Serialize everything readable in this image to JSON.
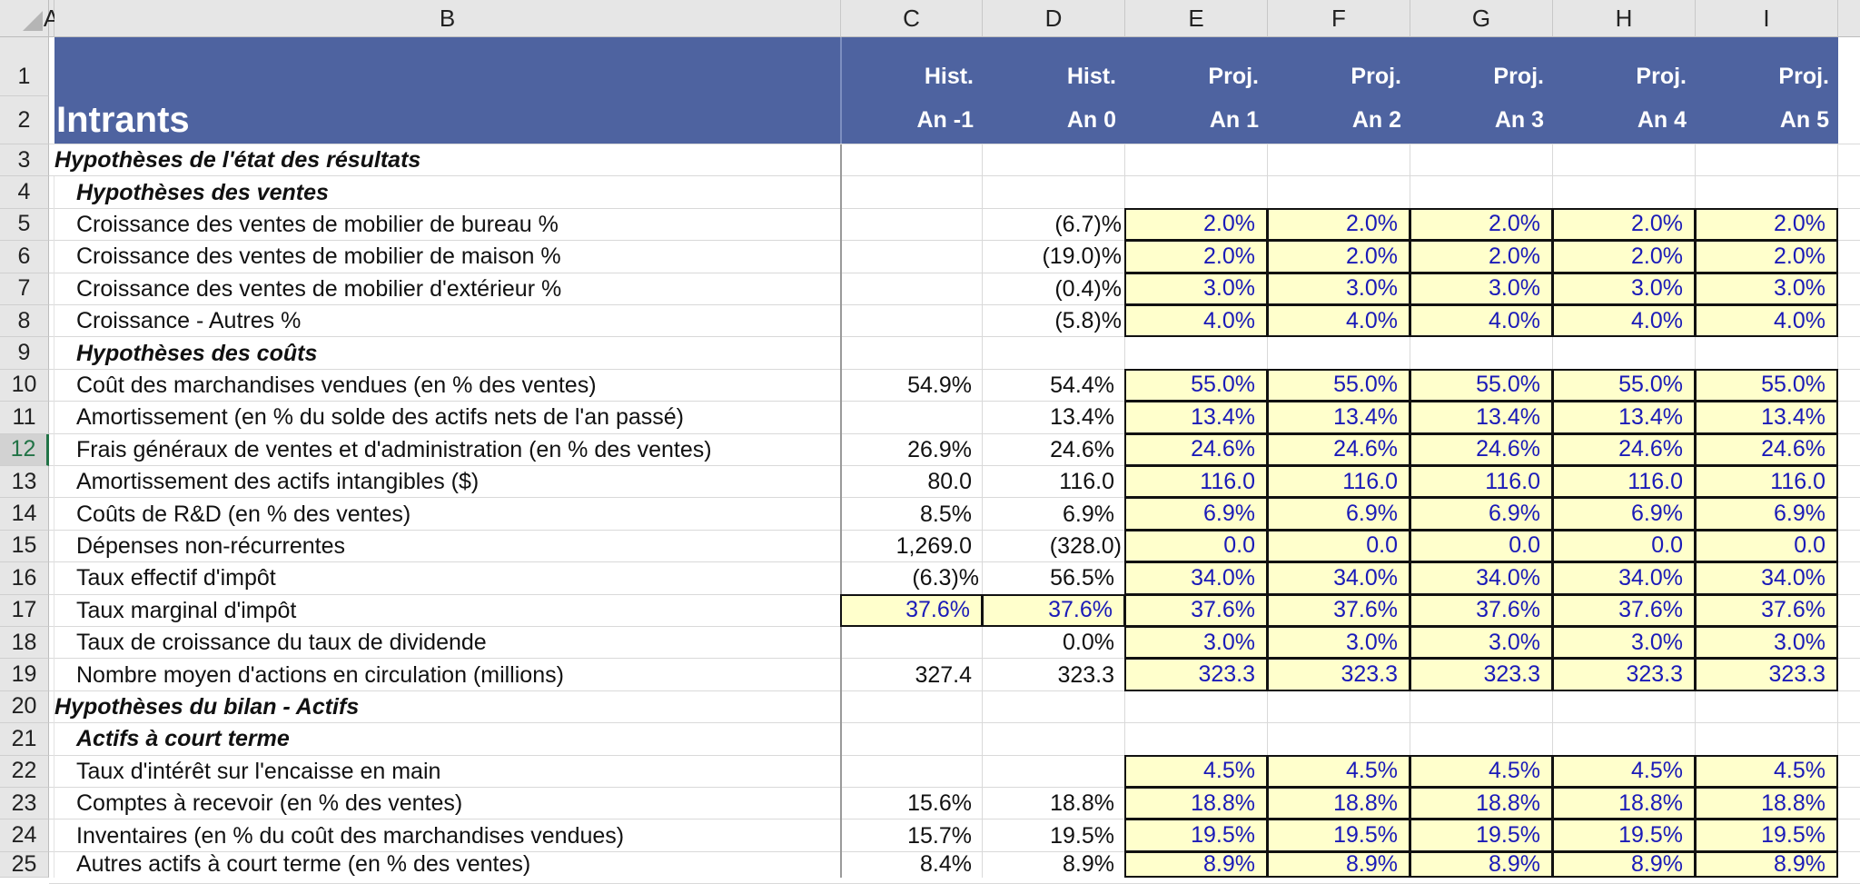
{
  "columns": [
    "A",
    "B",
    "C",
    "D",
    "E",
    "F",
    "G",
    "H",
    "I"
  ],
  "header": {
    "title": "Intrants",
    "col_types": [
      "Hist.",
      "Hist.",
      "Proj.",
      "Proj.",
      "Proj.",
      "Proj.",
      "Proj."
    ],
    "col_years": [
      "An -1",
      "An 0",
      "An 1",
      "An 2",
      "An 3",
      "An 4",
      "An 5"
    ]
  },
  "row_numbers": [
    "1",
    "2",
    "3",
    "4",
    "5",
    "6",
    "7",
    "8",
    "9",
    "10",
    "11",
    "12",
    "13",
    "14",
    "15",
    "16",
    "17",
    "18",
    "19",
    "20",
    "21",
    "22",
    "23",
    "24",
    "25"
  ],
  "active_row": "12",
  "colors": {
    "band": "#4e63a0",
    "input_fill": "#ffffcc",
    "input_text": "#1a1ab8"
  },
  "rows": [
    {
      "r": 3,
      "label": "Hypothèses de l'état des résultats",
      "style": "sec",
      "C": "",
      "D": "",
      "proj": []
    },
    {
      "r": 4,
      "label": "Hypothèses des ventes",
      "style": "sec ind",
      "C": "",
      "D": "",
      "proj": []
    },
    {
      "r": 5,
      "label": "Croissance des ventes de mobilier de bureau %",
      "style": "ind",
      "C": "",
      "D": "(6.7)%",
      "proj": [
        "2.0%",
        "2.0%",
        "2.0%",
        "2.0%",
        "2.0%"
      ]
    },
    {
      "r": 6,
      "label": "Croissance des ventes de mobilier de maison %",
      "style": "ind",
      "C": "",
      "D": "(19.0)%",
      "proj": [
        "2.0%",
        "2.0%",
        "2.0%",
        "2.0%",
        "2.0%"
      ]
    },
    {
      "r": 7,
      "label": "Croissance des ventes de mobilier d'extérieur %",
      "style": "ind",
      "C": "",
      "D": "(0.4)%",
      "proj": [
        "3.0%",
        "3.0%",
        "3.0%",
        "3.0%",
        "3.0%"
      ]
    },
    {
      "r": 8,
      "label": "Croissance - Autres %",
      "style": "ind",
      "C": "",
      "D": "(5.8)%",
      "proj": [
        "4.0%",
        "4.0%",
        "4.0%",
        "4.0%",
        "4.0%"
      ]
    },
    {
      "r": 9,
      "label": "Hypothèses des coûts",
      "style": "sec ind",
      "C": "",
      "D": "",
      "proj": []
    },
    {
      "r": 10,
      "label": "Coût des marchandises vendues (en % des ventes)",
      "style": "ind",
      "C": "54.9%",
      "D": "54.4%",
      "proj": [
        "55.0%",
        "55.0%",
        "55.0%",
        "55.0%",
        "55.0%"
      ]
    },
    {
      "r": 11,
      "label": "Amortissement (en % du solde des actifs nets de l'an passé)",
      "style": "ind",
      "C": "",
      "D": "13.4%",
      "proj": [
        "13.4%",
        "13.4%",
        "13.4%",
        "13.4%",
        "13.4%"
      ]
    },
    {
      "r": 12,
      "label": "Frais généraux de ventes et d'administration (en % des ventes)",
      "style": "ind",
      "C": "26.9%",
      "D": "24.6%",
      "proj": [
        "24.6%",
        "24.6%",
        "24.6%",
        "24.6%",
        "24.6%"
      ]
    },
    {
      "r": 13,
      "label": "Amortissement des actifs intangibles ($)",
      "style": "ind",
      "C": "80.0",
      "D": "116.0",
      "proj": [
        "116.0",
        "116.0",
        "116.0",
        "116.0",
        "116.0"
      ]
    },
    {
      "r": 14,
      "label": "Coûts de R&D (en % des ventes)",
      "style": "ind",
      "C": "8.5%",
      "D": "6.9%",
      "proj": [
        "6.9%",
        "6.9%",
        "6.9%",
        "6.9%",
        "6.9%"
      ]
    },
    {
      "r": 15,
      "label": "Dépenses non-récurrentes",
      "style": "ind",
      "C": "1,269.0",
      "D": "(328.0)",
      "proj": [
        "0.0",
        "0.0",
        "0.0",
        "0.0",
        "0.0"
      ]
    },
    {
      "r": 16,
      "label": "Taux effectif d'impôt",
      "style": "ind",
      "C": "(6.3)%",
      "D": "56.5%",
      "proj": [
        "34.0%",
        "34.0%",
        "34.0%",
        "34.0%",
        "34.0%"
      ]
    },
    {
      "r": 17,
      "label": "Taux marginal d'impôt",
      "style": "ind",
      "C": "37.6%",
      "D": "37.6%",
      "hist_input": true,
      "proj": [
        "37.6%",
        "37.6%",
        "37.6%",
        "37.6%",
        "37.6%"
      ]
    },
    {
      "r": 18,
      "label": "Taux de croissance du taux de dividende",
      "style": "ind",
      "C": "",
      "D": "0.0%",
      "proj": [
        "3.0%",
        "3.0%",
        "3.0%",
        "3.0%",
        "3.0%"
      ]
    },
    {
      "r": 19,
      "label": "Nombre moyen d'actions en circulation (millions)",
      "style": "ind",
      "C": "327.4",
      "D": "323.3",
      "proj": [
        "323.3",
        "323.3",
        "323.3",
        "323.3",
        "323.3"
      ]
    },
    {
      "r": 20,
      "label": "Hypothèses du bilan - Actifs",
      "style": "sec",
      "C": "",
      "D": "",
      "proj": []
    },
    {
      "r": 21,
      "label": "Actifs à court terme",
      "style": "sec ind",
      "C": "",
      "D": "",
      "proj": []
    },
    {
      "r": 22,
      "label": "Taux d'intérêt sur l'encaisse en main",
      "style": "ind",
      "C": "",
      "D": "",
      "proj": [
        "4.5%",
        "4.5%",
        "4.5%",
        "4.5%",
        "4.5%"
      ]
    },
    {
      "r": 23,
      "label": "Comptes à recevoir (en % des ventes)",
      "style": "ind",
      "C": "15.6%",
      "D": "18.8%",
      "proj": [
        "18.8%",
        "18.8%",
        "18.8%",
        "18.8%",
        "18.8%"
      ]
    },
    {
      "r": 24,
      "label": "Inventaires (en % du coût des marchandises vendues)",
      "style": "ind",
      "C": "15.7%",
      "D": "19.5%",
      "proj": [
        "19.5%",
        "19.5%",
        "19.5%",
        "19.5%",
        "19.5%"
      ]
    },
    {
      "r": 25,
      "label": "Autres actifs à court terme (en % des ventes)",
      "style": "ind",
      "C": "8.4%",
      "D": "8.9%",
      "proj": [
        "8.9%",
        "8.9%",
        "8.9%",
        "8.9%",
        "8.9%"
      ]
    }
  ]
}
